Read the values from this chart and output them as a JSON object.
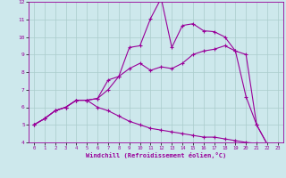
{
  "bg_color": "#cde8ec",
  "line_color": "#990099",
  "grid_color": "#aacccc",
  "xlabel": "Windchill (Refroidissement éolien,°C)",
  "xlim": [
    -0.5,
    23.5
  ],
  "ylim": [
    4,
    12
  ],
  "yticks": [
    4,
    5,
    6,
    7,
    8,
    9,
    10,
    11,
    12
  ],
  "xticks": [
    0,
    1,
    2,
    3,
    4,
    5,
    6,
    7,
    8,
    9,
    10,
    11,
    12,
    13,
    14,
    15,
    16,
    17,
    18,
    19,
    20,
    21,
    22,
    23
  ],
  "line1_x": [
    0,
    1,
    2,
    3,
    4,
    5,
    6,
    7,
    8,
    9,
    10,
    11,
    12,
    13,
    14,
    15,
    16,
    17,
    18,
    19,
    20,
    21,
    22,
    23
  ],
  "line1_y": [
    5.0,
    5.35,
    5.8,
    6.0,
    6.4,
    6.4,
    6.5,
    7.55,
    7.75,
    9.4,
    9.5,
    11.05,
    12.2,
    9.4,
    10.65,
    10.75,
    10.35,
    10.3,
    10.0,
    9.2,
    9.0,
    5.0,
    3.9,
    3.9
  ],
  "line2_x": [
    0,
    1,
    2,
    3,
    4,
    5,
    6,
    7,
    8,
    9,
    10,
    11,
    12,
    13,
    14,
    15,
    16,
    17,
    18,
    19,
    20,
    21,
    22,
    23
  ],
  "line2_y": [
    5.0,
    5.35,
    5.8,
    6.0,
    6.4,
    6.4,
    6.5,
    7.0,
    7.75,
    8.2,
    8.5,
    8.1,
    8.3,
    8.2,
    8.5,
    9.0,
    9.2,
    9.3,
    9.5,
    9.2,
    6.6,
    5.0,
    3.9,
    3.9
  ],
  "line3_x": [
    0,
    1,
    2,
    3,
    4,
    5,
    6,
    7,
    8,
    9,
    10,
    11,
    12,
    13,
    14,
    15,
    16,
    17,
    18,
    19,
    20,
    21,
    22,
    23
  ],
  "line3_y": [
    5.0,
    5.35,
    5.8,
    6.0,
    6.4,
    6.4,
    6.0,
    5.8,
    5.5,
    5.2,
    5.0,
    4.8,
    4.7,
    4.6,
    4.5,
    4.4,
    4.3,
    4.3,
    4.2,
    4.1,
    4.0,
    3.95,
    3.9,
    3.9
  ],
  "marker": "+",
  "markersize": 3,
  "linewidth": 0.8
}
